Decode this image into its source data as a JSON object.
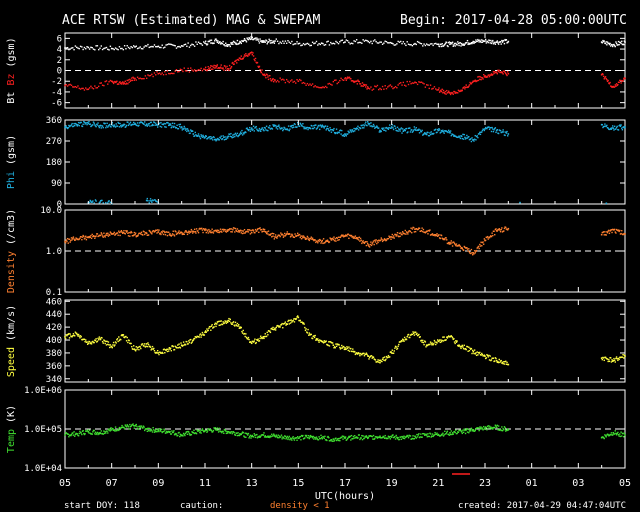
{
  "title": "ACE RTSW (Estimated) MAG & SWEPAM",
  "begin": "Begin: 2017-04-28 05:00:00UTC",
  "footer": {
    "start_doy": "start DOY: 118",
    "caution": "caution:",
    "density_note": "density < 1",
    "created": "created: 2017-04-29 04:47:04UTC"
  },
  "x_axis": {
    "label": "UTC(hours)",
    "ticks": [
      "05",
      "07",
      "09",
      "11",
      "13",
      "15",
      "17",
      "19",
      "21",
      "23",
      "01",
      "03",
      "05"
    ]
  },
  "colors": {
    "bt": "#ffffff",
    "bz": "#ff2020",
    "phi": "#20b0e0",
    "density": "#ff8030",
    "speed": "#ffff40",
    "temp": "#40e030",
    "frame": "#ffffff",
    "reference": "#ffffff"
  },
  "chart_data": [
    {
      "type": "scatter",
      "name": "mag",
      "ylabel_parts": [
        "Bt ",
        "Bz ",
        "(gsm)"
      ],
      "ylabel_colors": [
        "#ffffff",
        "#ff2020",
        "#ffffff"
      ],
      "yticks": [
        "6",
        "4",
        "2",
        "0",
        "-2",
        "-4",
        "-6"
      ],
      "ylim": [
        -7,
        7
      ],
      "reference": 0,
      "series": [
        {
          "name": "Bt",
          "color": "#ffffff",
          "x": [
            0,
            1,
            2,
            3,
            4,
            5,
            6,
            6.5,
            7,
            7.5,
            8,
            8.5,
            9,
            10,
            11,
            12,
            13,
            14,
            15,
            16,
            16.5,
            17,
            17.5,
            18,
            18.5,
            19,
            23,
            23.5,
            24
          ],
          "y": [
            4.2,
            4.3,
            4.1,
            4.4,
            4.5,
            4.6,
            5.1,
            5.6,
            4.8,
            5.4,
            5.9,
            5.3,
            5.5,
            5.0,
            5.1,
            5.3,
            5.4,
            5.1,
            5.0,
            4.9,
            4.9,
            5.0,
            5.4,
            5.5,
            5.3,
            5.4,
            5.3,
            4.8,
            5.3
          ]
        },
        {
          "name": "Bz",
          "color": "#ff2020",
          "x": [
            0,
            1,
            2,
            2.5,
            3,
            4,
            5,
            6,
            6.5,
            7,
            7.5,
            8,
            8.5,
            9,
            10,
            11,
            12,
            12.5,
            13,
            14,
            15,
            16,
            16.5,
            17,
            17.5,
            18,
            18.5,
            19,
            23,
            23.5,
            24
          ],
          "y": [
            -2.8,
            -3.5,
            -2.0,
            -2.5,
            -1.5,
            -0.6,
            0.1,
            0.2,
            0.8,
            0.3,
            2.3,
            3.4,
            -0.8,
            -1.8,
            -2.0,
            -3.2,
            -1.5,
            -2.0,
            -3.3,
            -3.0,
            -2.2,
            -3.6,
            -4.2,
            -3.8,
            -2.0,
            -1.0,
            -0.3,
            -0.6,
            -0.8,
            -3.0,
            -1.5
          ]
        }
      ]
    },
    {
      "type": "scatter",
      "name": "phi",
      "ylabel_parts": [
        "Phi ",
        "(gsm)"
      ],
      "ylabel_colors": [
        "#20b0e0",
        "#ffffff"
      ],
      "yticks": [
        "360",
        "270",
        "180",
        "90",
        "0"
      ],
      "ylim": [
        0,
        360
      ],
      "series": [
        {
          "name": "Phi",
          "color": "#20b0e0",
          "x": [
            0,
            0.5,
            1,
            1.5,
            2,
            2.5,
            3,
            3.5,
            4,
            4.5,
            5,
            5.5,
            6,
            6.5,
            7,
            7.5,
            8,
            8.5,
            9,
            9.5,
            10,
            10.5,
            11,
            11.5,
            12,
            12.5,
            13,
            13.5,
            14,
            14.5,
            15,
            15.5,
            16,
            16.5,
            17,
            17.5,
            18,
            18.5,
            19,
            23,
            23.5,
            24
          ],
          "y": [
            330,
            340,
            345,
            335,
            340,
            338,
            345,
            342,
            340,
            338,
            330,
            300,
            285,
            275,
            290,
            300,
            325,
            318,
            335,
            320,
            340,
            325,
            330,
            315,
            300,
            325,
            345,
            315,
            330,
            312,
            320,
            298,
            315,
            305,
            290,
            275,
            322,
            315,
            300,
            340,
            325,
            330
          ]
        },
        {
          "name": "Phi-low",
          "color": "#20b0e0",
          "x": [
            1,
            1.5,
            2,
            3.5,
            4,
            19.5,
            23.2
          ],
          "y": [
            5,
            8,
            2,
            15,
            4,
            6,
            3
          ]
        }
      ]
    },
    {
      "type": "scatter",
      "name": "density",
      "ylabel_parts": [
        "Density ",
        "(/cm3)"
      ],
      "ylabel_colors": [
        "#ff8030",
        "#ffffff"
      ],
      "yticks": [
        "10.0",
        "1.0",
        "0.1"
      ],
      "ylim": [
        0.1,
        10
      ],
      "yscale": "log",
      "reference": 1.0,
      "series": [
        {
          "name": "Density",
          "color": "#ff8030",
          "x": [
            0,
            0.5,
            1,
            1.5,
            2,
            2.5,
            3,
            3.5,
            4,
            4.5,
            5,
            5.5,
            6,
            6.5,
            7,
            7.5,
            8,
            8.5,
            9,
            9.5,
            10,
            10.5,
            11,
            11.5,
            12,
            12.5,
            13,
            13.5,
            14,
            14.5,
            15,
            15.5,
            16,
            16.5,
            17,
            17.5,
            18,
            18.5,
            19,
            23,
            23.5,
            24
          ],
          "y": [
            1.7,
            2.0,
            2.2,
            2.4,
            2.6,
            2.8,
            2.5,
            2.7,
            2.9,
            2.6,
            2.8,
            3.0,
            3.2,
            3.0,
            3.3,
            3.1,
            2.8,
            3.4,
            2.2,
            2.6,
            2.4,
            2.0,
            1.7,
            1.9,
            2.3,
            2.1,
            1.4,
            1.8,
            2.2,
            2.7,
            3.4,
            3.0,
            2.4,
            1.6,
            1.2,
            0.9,
            1.8,
            3.1,
            3.5,
            2.5,
            3.3,
            2.6
          ]
        }
      ]
    },
    {
      "type": "scatter",
      "name": "speed",
      "ylabel_parts": [
        "Speed ",
        "(km/s)"
      ],
      "ylabel_colors": [
        "#ffff40",
        "#ffffff"
      ],
      "yticks": [
        "460",
        "440",
        "420",
        "400",
        "380",
        "360",
        "340"
      ],
      "ylim": [
        335,
        462
      ],
      "series": [
        {
          "name": "Speed",
          "color": "#ffff40",
          "x": [
            0,
            0.5,
            1,
            1.5,
            2,
            2.5,
            3,
            3.5,
            4,
            4.5,
            5,
            5.5,
            6,
            6.5,
            7,
            7.5,
            8,
            8.5,
            9,
            9.5,
            10,
            10.5,
            11,
            11.5,
            12,
            12.5,
            13,
            13.5,
            14,
            14.5,
            15,
            15.5,
            16,
            16.5,
            17,
            17.5,
            18,
            18.5,
            19,
            23,
            23.5,
            24
          ],
          "y": [
            405,
            410,
            395,
            402,
            390,
            408,
            385,
            394,
            380,
            386,
            392,
            400,
            412,
            425,
            430,
            420,
            395,
            405,
            418,
            425,
            435,
            408,
            398,
            392,
            388,
            380,
            375,
            365,
            380,
            400,
            412,
            392,
            398,
            405,
            390,
            382,
            375,
            368,
            362,
            372,
            368,
            375
          ]
        }
      ]
    },
    {
      "type": "scatter",
      "name": "temp",
      "ylabel_parts": [
        "Temp ",
        "(K)"
      ],
      "ylabel_colors": [
        "#40e030",
        "#ffffff"
      ],
      "yticks": [
        "1.0E+06",
        "1.0E+05",
        "1.0E+04"
      ],
      "ylim": [
        10000,
        1000000
      ],
      "yscale": "log",
      "reference": 100000,
      "series": [
        {
          "name": "Temp",
          "color": "#40e030",
          "x": [
            0,
            0.5,
            1,
            1.5,
            2,
            2.5,
            3,
            3.5,
            4,
            4.5,
            5,
            5.5,
            6,
            6.5,
            7,
            7.5,
            8,
            8.5,
            9,
            9.5,
            10,
            10.5,
            11,
            11.5,
            12,
            12.5,
            13,
            13.5,
            14,
            14.5,
            15,
            15.5,
            16,
            16.5,
            17,
            17.5,
            18,
            18.5,
            19,
            23,
            23.5,
            24
          ],
          "y": [
            70000,
            75000,
            85000,
            80000,
            95000,
            110000,
            120000,
            100000,
            90000,
            85000,
            70000,
            80000,
            90000,
            95000,
            85000,
            75000,
            65000,
            70000,
            65000,
            60000,
            58000,
            62000,
            60000,
            55000,
            58000,
            62000,
            60000,
            65000,
            62000,
            58000,
            65000,
            70000,
            72000,
            80000,
            85000,
            95000,
            105000,
            110000,
            95000,
            60000,
            80000,
            70000
          ]
        }
      ]
    }
  ]
}
